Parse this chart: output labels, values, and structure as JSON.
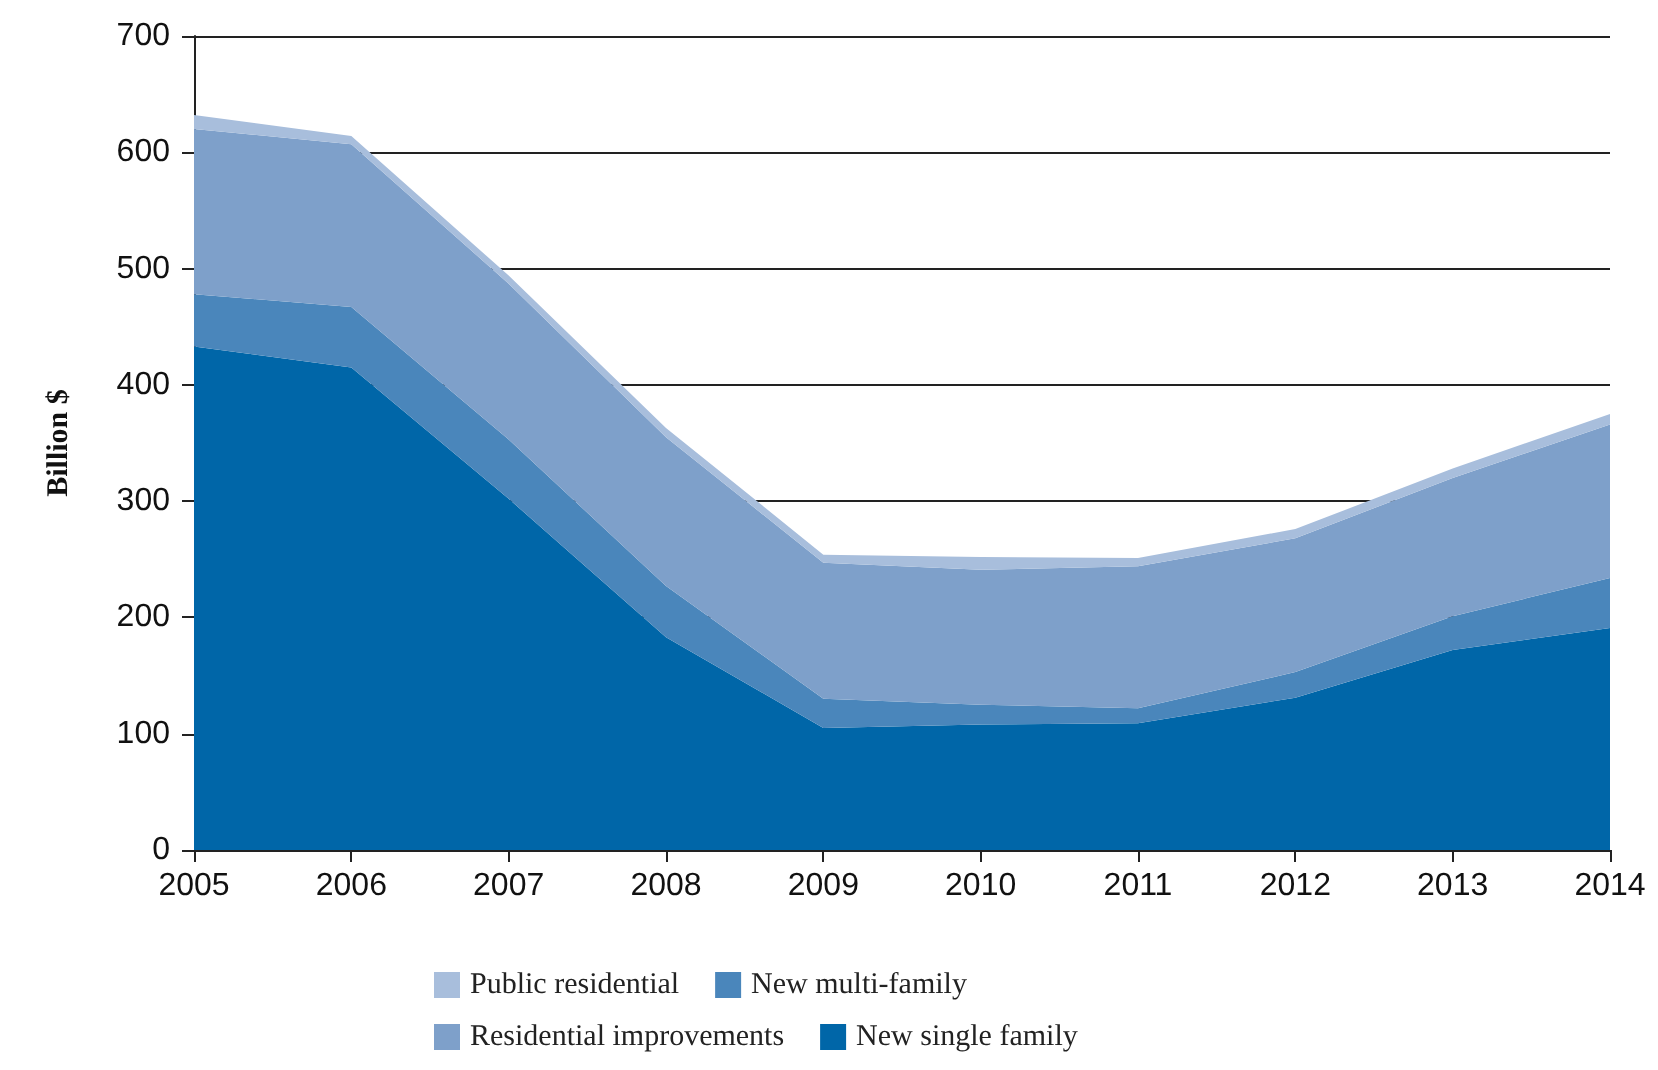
{
  "chart_data": {
    "type": "area",
    "ylabel": "Billion $",
    "categories": [
      "2005",
      "2006",
      "2007",
      "2008",
      "2009",
      "2010",
      "2011",
      "2012",
      "2013",
      "2014"
    ],
    "stacked": true,
    "series": [
      {
        "name": "New single family",
        "color": "#0066a8",
        "values": [
          433,
          415,
          302,
          183,
          105,
          108,
          109,
          131,
          172,
          191
        ]
      },
      {
        "name": "New multi-family",
        "color": "#4a86bb",
        "values": [
          45,
          52,
          51,
          44,
          25,
          17,
          13,
          22,
          29,
          43
        ]
      },
      {
        "name": "Residential improvements",
        "color": "#7ea0ca",
        "values": [
          142,
          140,
          134,
          128,
          117,
          116,
          122,
          115,
          119,
          132
        ]
      },
      {
        "name": "Public residential",
        "color": "#a8bedc",
        "values": [
          12,
          7,
          7,
          8,
          7,
          11,
          7,
          8,
          8,
          9
        ]
      }
    ],
    "ylim": [
      0,
      700
    ],
    "yticks": [
      0,
      100,
      200,
      300,
      400,
      500,
      600,
      700
    ],
    "grid": "y",
    "legend": "bottom"
  }
}
